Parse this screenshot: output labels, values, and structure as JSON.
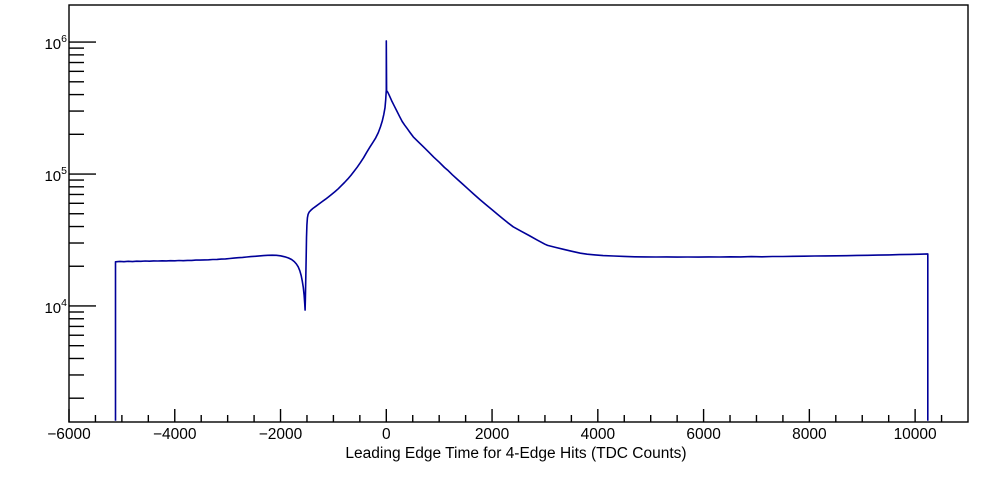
{
  "chart_data": {
    "type": "line",
    "title": "",
    "xlabel": "Leading Edge Time for 4-Edge Hits (TDC Counts)",
    "ylabel": "",
    "y_scale": "log",
    "x_range": [
      -6000,
      11000
    ],
    "y_range": [
      1320,
      1910000
    ],
    "grid": false,
    "legend": null,
    "x_major_ticks": [
      {
        "value": -6000,
        "label": "−6000"
      },
      {
        "value": -4000,
        "label": "−4000"
      },
      {
        "value": -2000,
        "label": "−2000"
      },
      {
        "value": 0,
        "label": "0"
      },
      {
        "value": 2000,
        "label": "2000"
      },
      {
        "value": 4000,
        "label": "4000"
      },
      {
        "value": 6000,
        "label": "6000"
      },
      {
        "value": 8000,
        "label": "8000"
      },
      {
        "value": 10000,
        "label": "10000"
      }
    ],
    "x_minor_step": 500,
    "y_decade_ticks": [
      {
        "value": 10000,
        "mantissa": "10",
        "exponent": "4"
      },
      {
        "value": 100000,
        "mantissa": "10",
        "exponent": "5"
      },
      {
        "value": 1000000,
        "mantissa": "10",
        "exponent": "6"
      }
    ],
    "colors": {
      "line": "#000099",
      "frame": "#000000",
      "background": "#ffffff",
      "text": "#000000"
    },
    "series": [
      {
        "name": "leading-edge-time-4edge-hits",
        "points": [
          [
            -5120,
            1350
          ],
          [
            -5120,
            21600
          ],
          [
            -5040,
            21750
          ],
          [
            -4960,
            21650
          ],
          [
            -4880,
            21800
          ],
          [
            -4800,
            21700
          ],
          [
            -4720,
            21850
          ],
          [
            -4640,
            21800
          ],
          [
            -4560,
            21900
          ],
          [
            -4480,
            21850
          ],
          [
            -4400,
            21950
          ],
          [
            -4320,
            21900
          ],
          [
            -4240,
            22000
          ],
          [
            -4160,
            21950
          ],
          [
            -4080,
            22050
          ],
          [
            -4000,
            22000
          ],
          [
            -3920,
            22100
          ],
          [
            -3840,
            22050
          ],
          [
            -3760,
            22150
          ],
          [
            -3680,
            22150
          ],
          [
            -3600,
            22250
          ],
          [
            -3520,
            22250
          ],
          [
            -3440,
            22350
          ],
          [
            -3360,
            22400
          ],
          [
            -3280,
            22500
          ],
          [
            -3200,
            22550
          ],
          [
            -3120,
            22650
          ],
          [
            -3040,
            22750
          ],
          [
            -2960,
            22900
          ],
          [
            -2880,
            23050
          ],
          [
            -2800,
            23200
          ],
          [
            -2720,
            23350
          ],
          [
            -2640,
            23500
          ],
          [
            -2560,
            23650
          ],
          [
            -2480,
            23800
          ],
          [
            -2400,
            23950
          ],
          [
            -2320,
            24100
          ],
          [
            -2240,
            24200
          ],
          [
            -2160,
            24250
          ],
          [
            -2080,
            24200
          ],
          [
            -2000,
            24000
          ],
          [
            -1920,
            23600
          ],
          [
            -1850,
            23100
          ],
          [
            -1790,
            22500
          ],
          [
            -1740,
            21700
          ],
          [
            -1700,
            20800
          ],
          [
            -1665,
            19800
          ],
          [
            -1635,
            18500
          ],
          [
            -1610,
            17000
          ],
          [
            -1588,
            15400
          ],
          [
            -1570,
            13800
          ],
          [
            -1555,
            12100
          ],
          [
            -1543,
            10500
          ],
          [
            -1536,
            9300
          ],
          [
            -1529,
            11500
          ],
          [
            -1522,
            16500
          ],
          [
            -1515,
            24000
          ],
          [
            -1508,
            33000
          ],
          [
            -1501,
            41000
          ],
          [
            -1492,
            46500
          ],
          [
            -1478,
            49500
          ],
          [
            -1458,
            51500
          ],
          [
            -1430,
            53000
          ],
          [
            -1390,
            54800
          ],
          [
            -1330,
            57000
          ],
          [
            -1270,
            59400
          ],
          [
            -1210,
            61900
          ],
          [
            -1150,
            64500
          ],
          [
            -1090,
            67300
          ],
          [
            -1030,
            70300
          ],
          [
            -970,
            73600
          ],
          [
            -910,
            77300
          ],
          [
            -850,
            81500
          ],
          [
            -790,
            86200
          ],
          [
            -730,
            91500
          ],
          [
            -670,
            97600
          ],
          [
            -610,
            104600
          ],
          [
            -550,
            112700
          ],
          [
            -490,
            122000
          ],
          [
            -430,
            133000
          ],
          [
            -370,
            146000
          ],
          [
            -310,
            160000
          ],
          [
            -255,
            173000
          ],
          [
            -200,
            188000
          ],
          [
            -152,
            206000
          ],
          [
            -112,
            227000
          ],
          [
            -78,
            251000
          ],
          [
            -48,
            283000
          ],
          [
            -25,
            318000
          ],
          [
            -11,
            365000
          ],
          [
            -4,
            410000
          ],
          [
            0,
            433000
          ],
          [
            0,
            1020000
          ],
          [
            5,
            427000
          ],
          [
            28,
            416000
          ],
          [
            55,
            396000
          ],
          [
            100,
            360000
          ],
          [
            150,
            329000
          ],
          [
            200,
            300000
          ],
          [
            250,
            274000
          ],
          [
            300,
            250000
          ],
          [
            350,
            234000
          ],
          [
            400,
            220000
          ],
          [
            450,
            206000
          ],
          [
            510,
            191000
          ],
          [
            600,
            176000
          ],
          [
            700,
            161000
          ],
          [
            800,
            147000
          ],
          [
            900,
            134000
          ],
          [
            1000,
            123000
          ],
          [
            1100,
            112000
          ],
          [
            1160,
            107000
          ],
          [
            1250,
            98600
          ],
          [
            1350,
            90800
          ],
          [
            1450,
            83400
          ],
          [
            1550,
            76700
          ],
          [
            1650,
            70600
          ],
          [
            1780,
            63500
          ],
          [
            1900,
            57800
          ],
          [
            2000,
            53600
          ],
          [
            2100,
            49700
          ],
          [
            2200,
            46000
          ],
          [
            2300,
            42700
          ],
          [
            2400,
            39800
          ],
          [
            2550,
            36900
          ],
          [
            2700,
            34200
          ],
          [
            2850,
            31700
          ],
          [
            3000,
            29400
          ],
          [
            3050,
            28800
          ],
          [
            3200,
            27800
          ],
          [
            3350,
            26900
          ],
          [
            3500,
            26000
          ],
          [
            3670,
            25100
          ],
          [
            3800,
            24700
          ],
          [
            3950,
            24400
          ],
          [
            4100,
            24100
          ],
          [
            4300,
            23900
          ],
          [
            4500,
            23750
          ],
          [
            4700,
            23600
          ],
          [
            4900,
            23550
          ],
          [
            5100,
            23500
          ],
          [
            5300,
            23550
          ],
          [
            5500,
            23450
          ],
          [
            5700,
            23500
          ],
          [
            5900,
            23450
          ],
          [
            6100,
            23550
          ],
          [
            6300,
            23500
          ],
          [
            6500,
            23600
          ],
          [
            6700,
            23550
          ],
          [
            6900,
            23650
          ],
          [
            7100,
            23600
          ],
          [
            7300,
            23700
          ],
          [
            7500,
            23700
          ],
          [
            7700,
            23800
          ],
          [
            7900,
            23850
          ],
          [
            8100,
            23900
          ],
          [
            8300,
            23950
          ],
          [
            8500,
            24000
          ],
          [
            8700,
            24050
          ],
          [
            8900,
            24150
          ],
          [
            9100,
            24200
          ],
          [
            9300,
            24300
          ],
          [
            9500,
            24400
          ],
          [
            9700,
            24500
          ],
          [
            9900,
            24600
          ],
          [
            10100,
            24700
          ],
          [
            10240,
            24800
          ],
          [
            10240,
            1350
          ]
        ]
      }
    ]
  }
}
